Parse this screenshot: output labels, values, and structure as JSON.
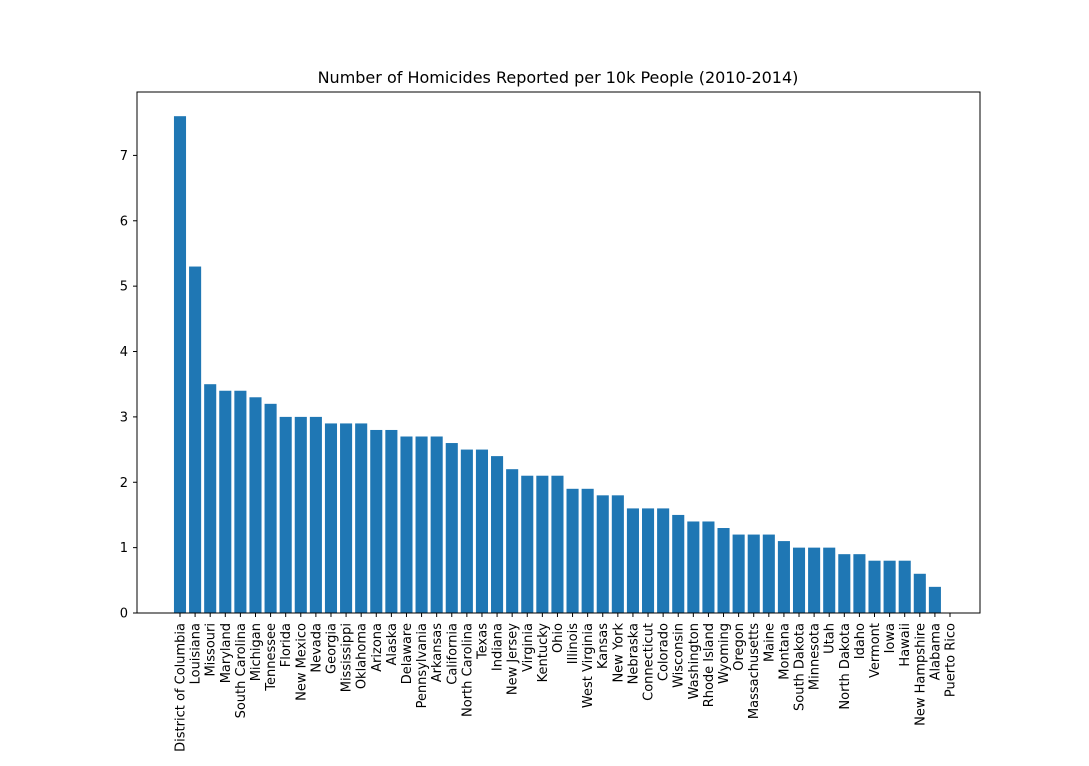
{
  "chart_data": {
    "type": "bar",
    "title": "Number of Homicides Reported per 10k People (2010-2014)",
    "xlabel": "",
    "ylabel": "",
    "ylim": [
      0,
      7.97
    ],
    "yticks": [
      0,
      1,
      2,
      3,
      4,
      5,
      6,
      7
    ],
    "grid": false,
    "bar_color": "#1f77b4",
    "categories": [
      "District of Columbia",
      "Louisiana",
      "Missouri",
      "Maryland",
      "South Carolina",
      "Michigan",
      "Tennessee",
      "Florida",
      "New Mexico",
      "Nevada",
      "Georgia",
      "Mississippi",
      "Oklahoma",
      "Arizona",
      "Alaska",
      "Delaware",
      "Pennsylvania",
      "Arkansas",
      "California",
      "North Carolina",
      "Texas",
      "Indiana",
      "New Jersey",
      "Virginia",
      "Kentucky",
      "Ohio",
      "Illinois",
      "West Virginia",
      "Kansas",
      "New York",
      "Nebraska",
      "Connecticut",
      "Colorado",
      "Wisconsin",
      "Washington",
      "Rhode Island",
      "Wyoming",
      "Oregon",
      "Massachusetts",
      "Maine",
      "Montana",
      "South Dakota",
      "Minnesota",
      "Utah",
      "North Dakota",
      "Idaho",
      "Vermont",
      "Iowa",
      "Hawaii",
      "New Hampshire",
      "Alabama",
      "Puerto Rico"
    ],
    "values": [
      7.6,
      5.3,
      3.5,
      3.4,
      3.4,
      3.3,
      3.2,
      3.0,
      3.0,
      3.0,
      2.9,
      2.9,
      2.9,
      2.8,
      2.8,
      2.7,
      2.7,
      2.7,
      2.6,
      2.5,
      2.5,
      2.4,
      2.2,
      2.1,
      2.1,
      2.1,
      1.9,
      1.9,
      1.8,
      1.8,
      1.6,
      1.6,
      1.6,
      1.5,
      1.4,
      1.4,
      1.3,
      1.2,
      1.2,
      1.2,
      1.1,
      1.0,
      1.0,
      1.0,
      0.9,
      0.9,
      0.8,
      0.8,
      0.8,
      0.6,
      0.4,
      0.0
    ]
  }
}
